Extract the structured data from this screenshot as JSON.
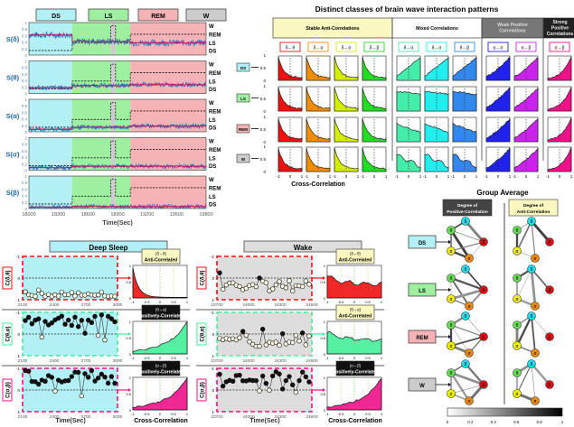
{
  "chart_data": [
    {
      "id": "panel-a",
      "type": "line",
      "title": "",
      "xlabel": "Time(Sec)",
      "xlim": [
        18000,
        19800
      ],
      "xticks": [
        "18000",
        "18300",
        "18600",
        "18900",
        "19200",
        "19500",
        "19800"
      ],
      "ylim": [
        0,
        1
      ],
      "yticks": [
        "0",
        "0.2",
        "0.4",
        "0.6",
        "0.8",
        "1"
      ],
      "right_labels": [
        "W",
        "REM",
        "LS",
        "DS"
      ],
      "stage_legend": [
        {
          "label": "DS",
          "color": "#b3f0f5"
        },
        {
          "label": "LS",
          "color": "#9ef0a0"
        },
        {
          "label": "REM",
          "color": "#f5b3b5"
        },
        {
          "label": "W",
          "color": "#cccccc"
        }
      ],
      "stage_spans": [
        {
          "stage": "DS",
          "from": 18000,
          "to": 18440
        },
        {
          "stage": "LS",
          "from": 18440,
          "to": 18830
        },
        {
          "stage": "W",
          "from": 18830,
          "to": 18880
        },
        {
          "stage": "LS",
          "from": 18880,
          "to": 19030
        },
        {
          "stage": "REM",
          "from": 19030,
          "to": 19800
        }
      ],
      "series": [
        {
          "name": "S(δ)",
          "mean": [
            0.62,
            0.42,
            0.4,
            0.38
          ]
        },
        {
          "name": "S(θ)",
          "mean": [
            0.18,
            0.24,
            0.27,
            0.27
          ]
        },
        {
          "name": "S(α)",
          "mean": [
            0.08,
            0.14,
            0.16,
            0.18
          ]
        },
        {
          "name": "S(σ)",
          "mean": [
            0.08,
            0.12,
            0.14,
            0.12
          ]
        },
        {
          "name": "S(β)",
          "mean": [
            0.04,
            0.06,
            0.08,
            0.06
          ]
        }
      ]
    },
    {
      "id": "panel-b",
      "type": "area",
      "title": "Distinct classes of brain wave interaction patterns",
      "xlabel": "Cross-Correlation",
      "xticks": [
        "-1",
        "0",
        "1"
      ],
      "yticks": [
        "0",
        "0.5",
        "1"
      ],
      "rows": [
        "DS",
        "LS",
        "REM",
        "W"
      ],
      "row_colors": [
        "#b3f0f5",
        "#9ef0a0",
        "#f5b3b5",
        "#cccccc"
      ],
      "groups": [
        {
          "label": "Stable Anti-Correlations",
          "bg": "#fbf7c0",
          "fg": "#000000",
          "pairs": [
            {
              "label": "δ↔θ",
              "color": "#ee1111"
            },
            {
              "label": "δ↔α",
              "color": "#f28c00"
            },
            {
              "label": "δ↔σ",
              "color": "#d4ee00"
            },
            {
              "label": "δ↔β",
              "color": "#22dd22"
            }
          ],
          "shape": "anti"
        },
        {
          "label": "Mixed Correlations",
          "bg": "#ffffff",
          "fg": "#000000",
          "pairs": [
            {
              "label": "θ↔α",
              "color": "#44eeaa"
            },
            {
              "label": "θ↔σ",
              "color": "#22eeee"
            },
            {
              "label": "θ↔β",
              "color": "#3388ee"
            }
          ],
          "shape": "mixed"
        },
        {
          "label": "Weak Positive Correlations",
          "bg": "#777777",
          "fg": "#dddddd",
          "pairs": [
            {
              "label": "α↔σ",
              "color": "#2222ee"
            },
            {
              "label": "α↔β",
              "color": "#cc22ee"
            }
          ],
          "shape": "pos"
        },
        {
          "label": "Strong Positive Correlations",
          "bg": "#222222",
          "fg": "#eeeeee",
          "pairs": [
            {
              "label": "σ↔β",
              "color": "#ee1188"
            }
          ],
          "shape": "strong"
        }
      ]
    },
    {
      "id": "panel-c",
      "type": "scatter",
      "conditions": [
        {
          "title": "Deep Sleep",
          "bg": "#b3f0f5",
          "xlim": [
            2100,
            3000
          ],
          "xticks": [
            "2100",
            "2400",
            "2700",
            "3000"
          ]
        },
        {
          "title": "Wake",
          "bg": "#dddddd",
          "xlim": [
            23700,
            24600
          ],
          "xticks": [
            "23700",
            "24000",
            "24300",
            "24600"
          ]
        }
      ],
      "ylim": [
        -1,
        1
      ],
      "yticks": [
        "-1",
        "0",
        "1"
      ],
      "xlabel": "Time(Sec)",
      "hist_xlabel": "Cross-Correlation",
      "hist_xticks": [
        "-1",
        "-0.5",
        "0",
        "0.5",
        "1"
      ],
      "hist_yticks": [
        "0",
        "0.5",
        "1"
      ],
      "rows": [
        {
          "ylabel": "C(δ,θ)",
          "color": "#ee1111",
          "ds": {
            "badge": "(δ↔θ)",
            "tag": "Anti-Correlated",
            "tag_dark": false,
            "shape": "anti_sharp"
          },
          "w": {
            "badge": "(δ↔θ)",
            "tag": "Anti-Correlated",
            "tag_dark": false,
            "shape": "anti_flat"
          }
        },
        {
          "ylabel": "C(θ,α)",
          "color": "#44ee99",
          "ds": {
            "badge": "(θ↔α)",
            "tag": "Positively-Correlated",
            "tag_dark": true,
            "shape": "pos"
          },
          "w": {
            "badge": "(θ↔α)",
            "tag": "Anti-Correlated",
            "tag_dark": false,
            "shape": "anti_flat"
          }
        },
        {
          "ylabel": "C(σ,β)",
          "color": "#ee1188",
          "ds": {
            "badge": "(σ↔β)",
            "tag": "Positively-Correlated",
            "tag_dark": true,
            "shape": "pos"
          },
          "w": {
            "badge": "(σ↔β)",
            "tag": "Positively-Correlated",
            "tag_dark": true,
            "shape": "pos"
          }
        }
      ]
    },
    {
      "id": "panel-d",
      "type": "diagram",
      "title": "Group Average",
      "col_headers": [
        {
          "label": "Degree of Positive-Correlation",
          "bg": "#444444",
          "fg": "#ffffff"
        },
        {
          "label": "Degree of Anti-Correlation",
          "bg": "#fbf7c0",
          "fg": "#000000"
        }
      ],
      "rows": [
        "DS",
        "LS",
        "REM",
        "W"
      ],
      "row_colors": [
        "#b3f0f5",
        "#9ef0a0",
        "#f5b3b5",
        "#cccccc"
      ],
      "nodes": [
        {
          "label": "δ",
          "color": "#22ddee"
        },
        {
          "label": "θ",
          "color": "#66dd55"
        },
        {
          "label": "β",
          "color": "#dd1111"
        },
        {
          "label": "α",
          "color": "#eeee11"
        },
        {
          "label": "σ",
          "color": "#ee8811"
        }
      ],
      "colorbar": {
        "min": 0,
        "max": 1,
        "ticks": [
          "0",
          "0.2",
          "0.4",
          "0.6",
          "0.8",
          "1"
        ]
      }
    }
  ]
}
